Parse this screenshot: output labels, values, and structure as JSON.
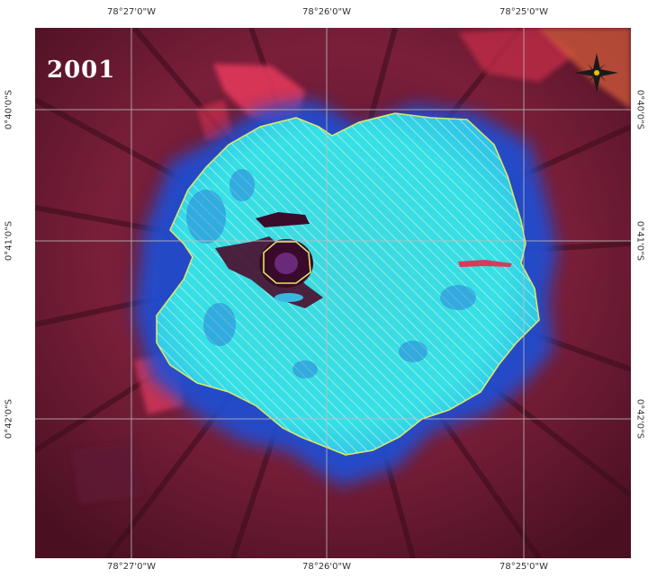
{
  "map": {
    "year": "2001",
    "longitude_ticks_top": [
      "78°27'0\"W",
      "78°26'0\"W",
      "78°25'0\"W"
    ],
    "longitude_ticks_bottom": [
      "78°27'0\"W",
      "78°26'0\"W",
      "78°25'0\"W"
    ],
    "latitude_ticks_left": [
      "0°40'0\"S",
      "0°41'0\"S",
      "0°42'0\"S"
    ],
    "latitude_ticks_right": [
      "0°40'0\"S",
      "0°41'0\"S",
      "0°42'0\"S"
    ],
    "colors": {
      "terrain_dark": "#4a1022",
      "terrain_mid": "#7a1f3a",
      "terrain_bright": "#d93a5a",
      "glacier_fill": "#3fe3e3",
      "glacier_edge": "#1a4fd8",
      "outline": "#d9e86a",
      "hatch": "#e6ffe0",
      "crater": "#3a0a2a",
      "grid_line": "#bfbfbf"
    },
    "icons": [
      "north-arrow-icon"
    ]
  }
}
